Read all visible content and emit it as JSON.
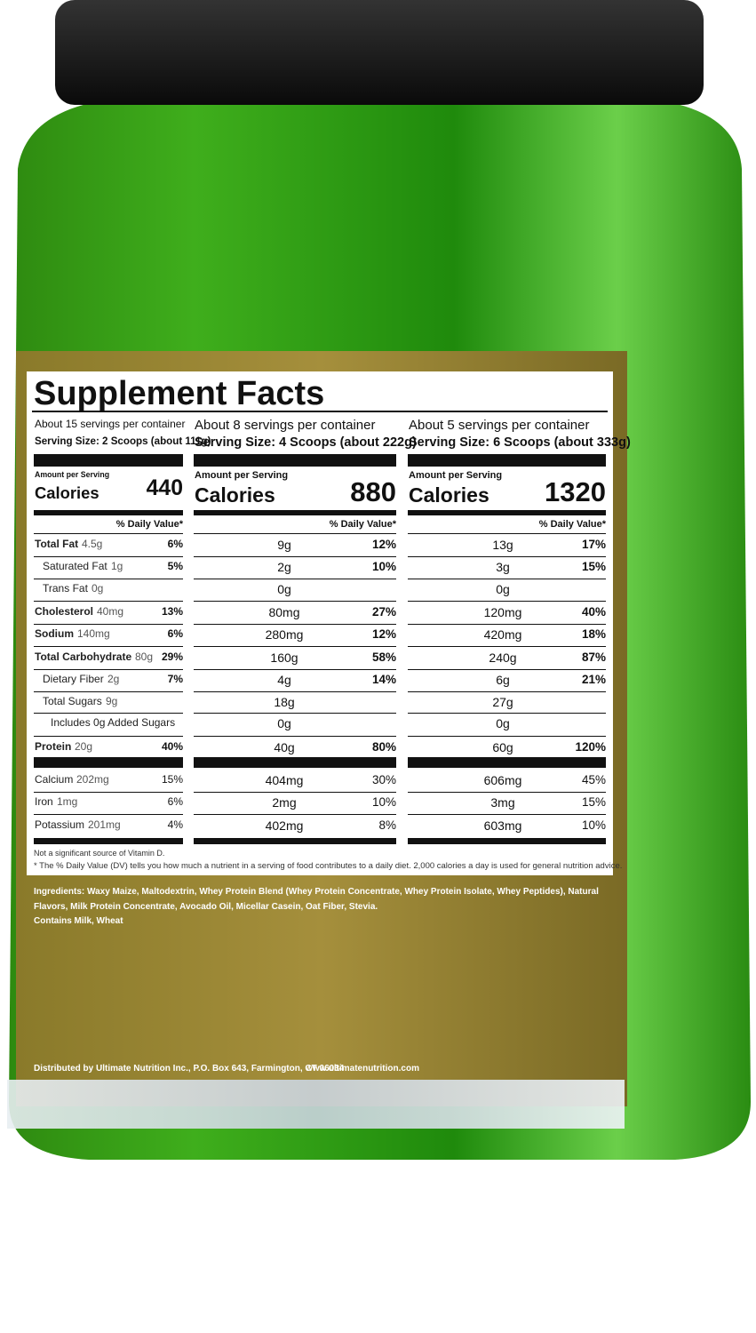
{
  "title": "Supplement Facts",
  "columns": [
    {
      "servings": "About 15 servings per container",
      "serving_size": "Serving Size: 2 Scoops (about 111g)",
      "amount_label": "Amount per Serving",
      "calories_label": "Calories",
      "calories": "440",
      "dv_header": "% Daily Value*"
    },
    {
      "servings": "About 8 servings per container",
      "serving_size": "Serving Size: 4 Scoops (about 222g)",
      "amount_label": "Amount per Serving",
      "calories_label": "Calories",
      "calories": "880",
      "dv_header": "% Daily Value*"
    },
    {
      "servings": "About 5 servings per container",
      "serving_size": "Serving Size: 6 Scoops (about 333g)",
      "amount_label": "Amount per Serving",
      "calories_label": "Calories",
      "calories": "1320",
      "dv_header": "% Daily Value*"
    }
  ],
  "nutrients": [
    {
      "name": "Total Fat",
      "amounts": [
        "4.5g",
        "9g",
        "13g"
      ],
      "dv": [
        "6%",
        "12%",
        "17%"
      ]
    },
    {
      "name": "Saturated Fat",
      "amounts": [
        "1g",
        "2g",
        "3g"
      ],
      "dv": [
        "5%",
        "10%",
        "15%"
      ]
    },
    {
      "name": "Trans Fat",
      "amounts": [
        "0g",
        "0g",
        "0g"
      ],
      "dv": [
        null,
        null,
        null
      ]
    },
    {
      "name": "Cholesterol",
      "amounts": [
        "40mg",
        "80mg",
        "120mg"
      ],
      "dv": [
        "13%",
        "27%",
        "40%"
      ]
    },
    {
      "name": "Sodium",
      "amounts": [
        "140mg",
        "280mg",
        "420mg"
      ],
      "dv": [
        "6%",
        "12%",
        "18%"
      ]
    },
    {
      "name": "Total Carbohydrate",
      "amounts": [
        "80g",
        "160g",
        "240g"
      ],
      "dv": [
        "29%",
        "58%",
        "87%"
      ]
    },
    {
      "name": "Dietary Fiber",
      "amounts": [
        "2g",
        "4g",
        "6g"
      ],
      "dv": [
        "7%",
        "14%",
        "21%"
      ]
    },
    {
      "name": "Total Sugars",
      "amounts": [
        "9g",
        "18g",
        "27g"
      ],
      "dv": [
        null,
        null,
        null
      ]
    },
    {
      "name": "Includes 0g Added Sugars",
      "amounts": [
        null,
        "0g",
        "0g"
      ],
      "dv": [
        null,
        null,
        null
      ]
    },
    {
      "name": "Protein",
      "amounts": [
        "20g",
        "40g",
        "60g"
      ],
      "dv": [
        "40%",
        "80%",
        "120%"
      ]
    },
    {
      "name": "Calcium",
      "amounts": [
        "202mg",
        "404mg",
        "606mg"
      ],
      "dv": [
        "15%",
        "30%",
        "45%"
      ]
    },
    {
      "name": "Iron",
      "amounts": [
        "1mg",
        "2mg",
        "3mg"
      ],
      "dv": [
        "6%",
        "10%",
        "15%"
      ]
    },
    {
      "name": "Potassium",
      "amounts": [
        "201mg",
        "402mg",
        "603mg"
      ],
      "dv": [
        "4%",
        "8%",
        "10%"
      ]
    }
  ],
  "footnotes": [
    "Not a significant source of Vitamin D.",
    "* The % Daily Value (DV) tells you how much a nutrient in a serving of food contributes to a daily diet. 2,000 calories a day is used for general nutrition advice."
  ],
  "ingredients": "Ingredients: Waxy Maize, Maltodextrin, Whey Protein Blend (Whey Protein Concentrate, Whey Protein Isolate, Whey Peptides), Natural Flavors, Milk Protein Concentrate, Avocado Oil, Micellar Casein, Oat Fiber, Stevia.",
  "allergens": "Contains Milk, Wheat",
  "distributor": "Distributed by Ultimate Nutrition Inc., P.O. Box 643, Farmington, CT 06034",
  "website": "www.ultimatenutrition.com"
}
